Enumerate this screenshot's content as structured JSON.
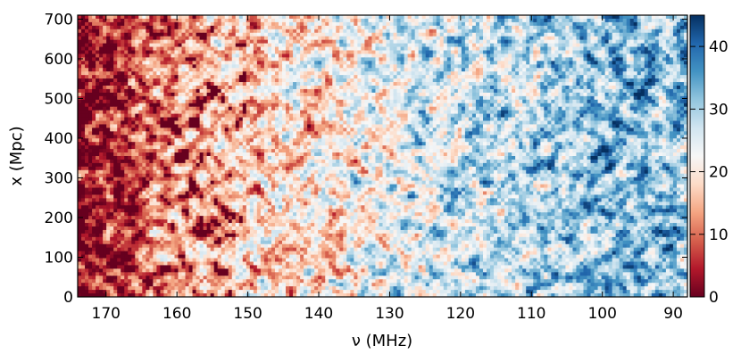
{
  "chart_data": {
    "type": "heatmap",
    "title": "",
    "xlabel": "ν (MHz)",
    "ylabel": "x (Mpc)",
    "xlim": [
      174,
      88
    ],
    "ylim": [
      0,
      710
    ],
    "x_ticks": [
      170,
      160,
      150,
      140,
      130,
      120,
      110,
      100,
      90
    ],
    "y_ticks": [
      0,
      100,
      200,
      300,
      400,
      500,
      600,
      700
    ],
    "x_tick_labels": [
      "170",
      "160",
      "150",
      "140",
      "130",
      "120",
      "110",
      "100",
      "90"
    ],
    "y_tick_labels": [
      "0",
      "100",
      "200",
      "300",
      "400",
      "500",
      "600",
      "700"
    ],
    "colorbar": {
      "colormap": "RdBu",
      "range": [
        0,
        45
      ],
      "ticks": [
        0,
        10,
        20,
        30,
        40
      ],
      "tick_labels": [
        "0",
        "10",
        "20",
        "30",
        "40"
      ]
    },
    "colors": {
      "low": "#67001f",
      "mid_low": "#f4a582",
      "mid": "#f7f7f7",
      "mid_high": "#92c5de",
      "high": "#053061"
    },
    "mean_level_by_frequency": {
      "x": [
        174,
        168,
        164,
        160,
        155,
        150,
        145,
        140,
        135,
        130,
        125,
        120,
        115,
        110,
        105,
        100,
        95,
        90,
        88
      ],
      "values": [
        1,
        4,
        10,
        14,
        15,
        17,
        18,
        20,
        21,
        23,
        25,
        27,
        28,
        30,
        31,
        32,
        32,
        32,
        31
      ]
    },
    "grid": false
  }
}
